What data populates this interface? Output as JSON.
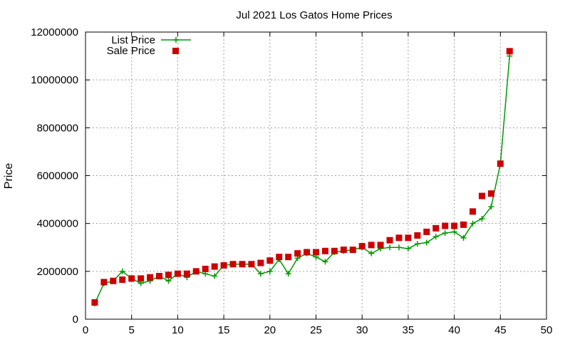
{
  "chart_data": {
    "type": "line",
    "title": "Jul 2021 Los Gatos Home Prices",
    "xlabel": "",
    "ylabel": "Price",
    "xlim": [
      0,
      50
    ],
    "ylim": [
      0,
      12000000
    ],
    "xticks": [
      0,
      5,
      10,
      15,
      20,
      25,
      30,
      35,
      40,
      45,
      50
    ],
    "yticks": [
      0,
      2000000,
      4000000,
      6000000,
      8000000,
      10000000,
      12000000
    ],
    "grid": true,
    "legend_position": "top-left",
    "x": [
      1,
      2,
      3,
      4,
      5,
      6,
      7,
      8,
      9,
      10,
      11,
      12,
      13,
      14,
      15,
      16,
      17,
      18,
      19,
      20,
      21,
      22,
      23,
      24,
      25,
      26,
      27,
      28,
      29,
      30,
      31,
      32,
      33,
      34,
      35,
      36,
      37,
      38,
      39,
      40,
      41,
      42,
      43,
      44,
      45,
      46
    ],
    "series": [
      {
        "name": "List Price",
        "style": "linespoints",
        "marker": "plus",
        "color": "#009900",
        "values": [
          650000,
          1500000,
          1600000,
          2000000,
          1700000,
          1500000,
          1600000,
          1800000,
          1600000,
          1900000,
          1750000,
          2000000,
          1900000,
          1800000,
          2250000,
          2300000,
          2300000,
          2300000,
          1900000,
          2000000,
          2500000,
          1900000,
          2550000,
          2750000,
          2600000,
          2400000,
          2800000,
          2850000,
          2900000,
          3000000,
          2750000,
          2950000,
          3000000,
          3000000,
          2950000,
          3150000,
          3200000,
          3450000,
          3600000,
          3650000,
          3400000,
          4000000,
          4200000,
          4700000,
          6500000,
          11000000
        ]
      },
      {
        "name": "Sale Price",
        "style": "points",
        "marker": "square",
        "color": "#cc0000",
        "values": [
          700000,
          1550000,
          1600000,
          1650000,
          1700000,
          1700000,
          1750000,
          1800000,
          1850000,
          1900000,
          1900000,
          2000000,
          2100000,
          2200000,
          2250000,
          2300000,
          2300000,
          2300000,
          2350000,
          2450000,
          2600000,
          2600000,
          2750000,
          2800000,
          2800000,
          2850000,
          2850000,
          2900000,
          2900000,
          3050000,
          3100000,
          3100000,
          3300000,
          3400000,
          3400000,
          3500000,
          3650000,
          3800000,
          3900000,
          3900000,
          3950000,
          4500000,
          5150000,
          5250000,
          6500000,
          11200000
        ]
      }
    ]
  }
}
